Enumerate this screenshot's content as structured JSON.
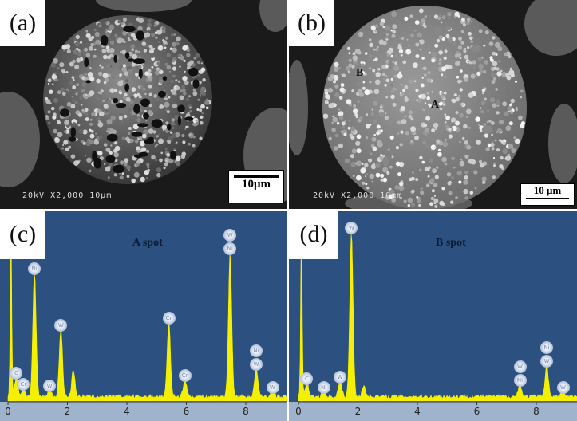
{
  "panels": {
    "a": {
      "tag": "(a)",
      "scale_bar": "10μm",
      "micron_bar": "20kV   X2,000   10μm"
    },
    "b": {
      "tag": "(b)",
      "scale_bar": "10 μm",
      "micron_bar": "20kV   X2,000   10μm",
      "spot_a": "A",
      "spot_b": "B"
    },
    "c": {
      "tag": "(c)"
    },
    "d": {
      "tag": "(d)"
    }
  },
  "colors": {
    "spectrum": "#f5f000",
    "eds_background": "#2c5080",
    "axis_strip": "#9fb4cc"
  },
  "chart_data": [
    {
      "type": "line",
      "title": "A spot",
      "xlabel": "",
      "ylabel": "",
      "xlim": [
        0,
        9.2
      ],
      "ylim": [
        0,
        100
      ],
      "x_ticks": [
        "0",
        "2",
        "4",
        "6",
        "8"
      ],
      "grid": false,
      "peaks": [
        {
          "x": 0.1,
          "y": 100,
          "label": ""
        },
        {
          "x": 0.28,
          "y": 11,
          "label": "C"
        },
        {
          "x": 0.52,
          "y": 5,
          "label": "Cr"
        },
        {
          "x": 0.89,
          "y": 70,
          "label": "Ni"
        },
        {
          "x": 1.4,
          "y": 4,
          "label": "W"
        },
        {
          "x": 1.78,
          "y": 38,
          "label": "W"
        },
        {
          "x": 2.2,
          "y": 15,
          "label": ""
        },
        {
          "x": 5.41,
          "y": 42,
          "label": "Cr"
        },
        {
          "x": 5.95,
          "y": 10,
          "label": "Cr"
        },
        {
          "x": 7.47,
          "y": 81,
          "label": "W Ni"
        },
        {
          "x": 8.35,
          "y": 16,
          "label": "Ni W"
        },
        {
          "x": 8.9,
          "y": 3,
          "label": "W"
        }
      ]
    },
    {
      "type": "line",
      "title": "B spot",
      "xlabel": "",
      "ylabel": "",
      "xlim": [
        0,
        9.2
      ],
      "ylim": [
        0,
        100
      ],
      "x_ticks": [
        "0",
        "2",
        "4",
        "6",
        "8"
      ],
      "grid": false,
      "peaks": [
        {
          "x": 0.1,
          "y": 100,
          "label": ""
        },
        {
          "x": 0.28,
          "y": 8,
          "label": "C"
        },
        {
          "x": 0.85,
          "y": 3,
          "label": "Ni"
        },
        {
          "x": 1.4,
          "y": 9,
          "label": "W"
        },
        {
          "x": 1.78,
          "y": 93,
          "label": "W"
        },
        {
          "x": 2.2,
          "y": 6,
          "label": ""
        },
        {
          "x": 7.45,
          "y": 7,
          "label": "W Ni"
        },
        {
          "x": 8.35,
          "y": 18,
          "label": "Ni W"
        },
        {
          "x": 8.9,
          "y": 3,
          "label": "W"
        }
      ]
    }
  ]
}
